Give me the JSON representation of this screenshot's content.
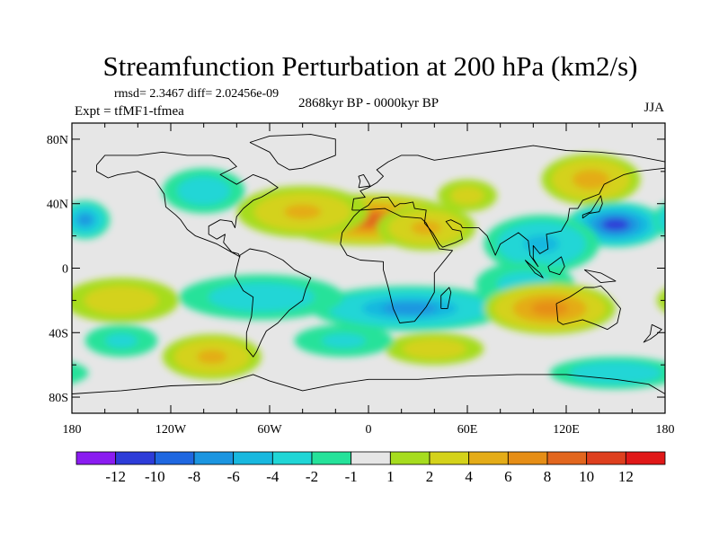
{
  "chart_data": {
    "type": "heatmap",
    "title": "Streamfunction Perturbation at 200 hPa (km2/s)",
    "stats_line": "rmsd= 2.3467 diff= 2.02456e-09",
    "expt_label": "Expt = tfMF1-tfmea",
    "period_label": "2868kyr BP - 0000kyr BP",
    "season_label": "JJA",
    "x_range": [
      -180,
      180
    ],
    "y_range": [
      -90,
      90
    ],
    "x_ticks": [
      {
        "value": -180,
        "label": "180"
      },
      {
        "value": -120,
        "label": "120W"
      },
      {
        "value": -60,
        "label": "60W"
      },
      {
        "value": 0,
        "label": "0"
      },
      {
        "value": 60,
        "label": "60E"
      },
      {
        "value": 120,
        "label": "120E"
      },
      {
        "value": 180,
        "label": "180"
      }
    ],
    "y_ticks": [
      {
        "value": 80,
        "label": "80N"
      },
      {
        "value": 40,
        "label": "40N"
      },
      {
        "value": 0,
        "label": "0"
      },
      {
        "value": -40,
        "label": "40S"
      },
      {
        "value": -80,
        "label": "80S"
      }
    ],
    "colorbar": {
      "levels": [
        -12,
        -10,
        -8,
        -6,
        -4,
        -2,
        -1,
        1,
        2,
        4,
        6,
        8,
        10,
        12
      ],
      "labels": [
        "-12",
        "-10",
        "-8",
        "-6",
        "-4",
        "-2",
        "-1",
        "1",
        "2",
        "4",
        "6",
        "8",
        "10",
        "12"
      ],
      "colors": [
        "#8a1cf0",
        "#2d3cd8",
        "#1f67e0",
        "#1b95e0",
        "#18b8df",
        "#20d6d6",
        "#25e29a",
        "#e6e6e6",
        "#a6dc1e",
        "#d4d21a",
        "#e4ac18",
        "#e68e16",
        "#e2661e",
        "#de3f1e",
        "#e01818"
      ]
    },
    "anomaly_centers": [
      {
        "lon": 0,
        "lat": 30,
        "value": 8.5,
        "rlon": 55,
        "rlat": 16
      },
      {
        "lon": -40,
        "lat": 35,
        "value": 4,
        "rlon": 40,
        "rlat": 16
      },
      {
        "lon": 35,
        "lat": 25,
        "value": 4.5,
        "rlon": 30,
        "rlat": 14
      },
      {
        "lon": 135,
        "lat": 55,
        "value": 5,
        "rlon": 30,
        "rlat": 16
      },
      {
        "lon": 60,
        "lat": 45,
        "value": 2.5,
        "rlon": 18,
        "rlat": 10
      },
      {
        "lon": 150,
        "lat": 27,
        "value": -10,
        "rlon": 30,
        "rlat": 14
      },
      {
        "lon": 105,
        "lat": 15,
        "value": -4.5,
        "rlon": 35,
        "rlat": 18
      },
      {
        "lon": -172,
        "lat": 30,
        "value": -6,
        "rlon": 15,
        "rlat": 12
      },
      {
        "lon": -100,
        "lat": 48,
        "value": -3,
        "rlon": 25,
        "rlat": 14
      },
      {
        "lon": 25,
        "lat": -25,
        "value": -6,
        "rlon": 60,
        "rlat": 14
      },
      {
        "lon": -65,
        "lat": -18,
        "value": -3,
        "rlon": 50,
        "rlat": 14
      },
      {
        "lon": 95,
        "lat": -10,
        "value": -2.5,
        "rlon": 30,
        "rlat": 14
      },
      {
        "lon": 110,
        "lat": -25,
        "value": 7,
        "rlon": 40,
        "rlat": 16
      },
      {
        "lon": -150,
        "lat": -20,
        "value": 3,
        "rlon": 35,
        "rlat": 14
      },
      {
        "lon": -95,
        "lat": -55,
        "value": 4.5,
        "rlon": 30,
        "rlat": 14
      },
      {
        "lon": -150,
        "lat": -45,
        "value": -2,
        "rlon": 22,
        "rlat": 10
      },
      {
        "lon": 40,
        "lat": -50,
        "value": 3,
        "rlon": 30,
        "rlat": 10
      },
      {
        "lon": 150,
        "lat": -65,
        "value": -3.5,
        "rlon": 40,
        "rlat": 10
      },
      {
        "lon": -15,
        "lat": -45,
        "value": -2,
        "rlon": 30,
        "rlat": 10
      }
    ]
  }
}
